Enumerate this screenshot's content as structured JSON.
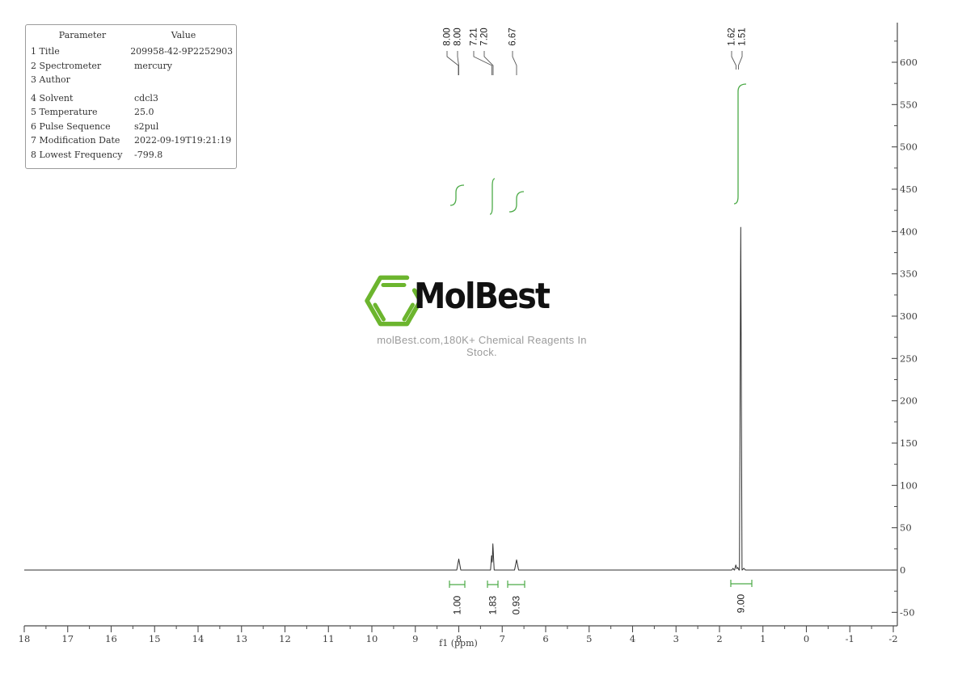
{
  "param_table": {
    "headers": [
      "Parameter",
      "Value"
    ],
    "rows": [
      {
        "num": "1",
        "name": "Title",
        "value": "209958-42-9P2252903"
      },
      {
        "num": "2",
        "name": "Spectrometer",
        "value": "mercury"
      },
      {
        "num": "3",
        "name": "Author",
        "value": ""
      },
      {
        "num": "4",
        "name": "Solvent",
        "value": "cdcl3"
      },
      {
        "num": "5",
        "name": "Temperature",
        "value": "25.0"
      },
      {
        "num": "6",
        "name": "Pulse Sequence",
        "value": "s2pul"
      },
      {
        "num": "7",
        "name": "Modification Date",
        "value": "2022-09-19T19:21:19"
      },
      {
        "num": "8",
        "name": "Lowest Frequency",
        "value": "-799.8"
      }
    ]
  },
  "logo": {
    "brand": "MolBest",
    "tagline": "molBest.com,180K+ Chemical Reagents In Stock.",
    "green": "#6cb52e",
    "text_color": "#111111",
    "tagline_color": "#9b9b9b"
  },
  "chart_data": {
    "type": "line",
    "description": "1H NMR spectrum with integral curves",
    "xlabel": "f1 (ppm)",
    "xlim": [
      18,
      -2
    ],
    "x_ticks": [
      18,
      17,
      16,
      15,
      14,
      13,
      12,
      11,
      10,
      9,
      8,
      7,
      6,
      5,
      4,
      3,
      2,
      1,
      0,
      -1,
      -2
    ],
    "ylim_right": [
      -75,
      648
    ],
    "y_ticks_right": [
      600,
      550,
      500,
      450,
      400,
      350,
      300,
      250,
      200,
      150,
      100,
      50,
      0,
      -50
    ],
    "line_color": "#2f2f2f",
    "axis_color": "#4a4a4a",
    "integral_color": "#4caa47",
    "peaks": [
      {
        "ppm": 8.0,
        "intensity": 13,
        "w": 2.5
      },
      {
        "ppm": 7.245,
        "intensity": 17,
        "w": 1.3
      },
      {
        "ppm": 7.215,
        "intensity": 31,
        "w": 1.6
      },
      {
        "ppm": 6.67,
        "intensity": 12,
        "w": 2.5
      },
      {
        "ppm": 1.69,
        "intensity": 2,
        "w": 1.5
      },
      {
        "ppm": 1.625,
        "intensity": 6,
        "w": 1.5
      },
      {
        "ppm": 1.575,
        "intensity": 3,
        "w": 1.2
      },
      {
        "ppm": 1.51,
        "intensity": 405,
        "w": 1.6
      },
      {
        "ppm": 1.44,
        "intensity": 2,
        "w": 2
      }
    ],
    "peak_labels": [
      {
        "text": "8.00",
        "x": 553,
        "tip": 567,
        "tail": 93
      },
      {
        "text": "8.00",
        "x": 566,
        "tip": 567.5,
        "tail": 93
      },
      {
        "text": "7.21",
        "x": 586,
        "tip": 608.5,
        "tail": 93
      },
      {
        "text": "7.20",
        "x": 599,
        "tip": 610,
        "tail": 93
      },
      {
        "text": "6.67",
        "x": 634,
        "tip": 639,
        "tail": 93
      },
      {
        "text": "1.62",
        "x": 905,
        "tip": 910.5,
        "tail": 86
      },
      {
        "text": "1.51",
        "x": 918,
        "tip": 913.5,
        "tail": 86
      }
    ],
    "integrals": [
      {
        "value": "1.00",
        "bx1": 556,
        "bx2": 575,
        "by": 723,
        "cl": 557,
        "cc": 564,
        "cr": 574,
        "ct": 229,
        "cb": 254,
        "lx": 565,
        "ly": 748
      },
      {
        "value": "1.83",
        "bx1": 603,
        "bx2": 616,
        "by": 723,
        "cl": 606,
        "cc": 609,
        "cr": 612,
        "ct": 221,
        "cb": 265,
        "lx": 609,
        "ly": 748
      },
      {
        "value": "0.93",
        "bx1": 628,
        "bx2": 649,
        "by": 723,
        "cl": 630,
        "cc": 639,
        "cr": 648,
        "ct": 237,
        "cb": 262,
        "lx": 638,
        "ly": 748
      },
      {
        "value": "9.00",
        "bx1": 904,
        "bx2": 930,
        "by": 722,
        "cl": 908,
        "cc": 913,
        "cr": 923,
        "ct": 104,
        "cb": 252,
        "lx": 916,
        "ly": 746
      }
    ]
  }
}
